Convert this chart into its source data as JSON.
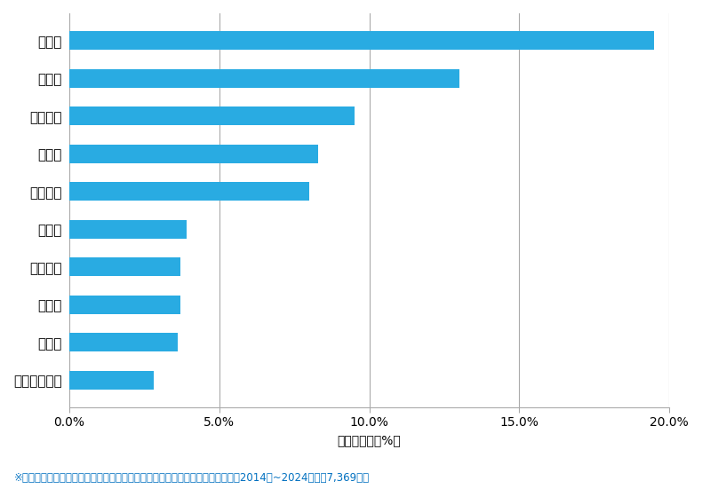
{
  "categories": [
    "那覇市",
    "沖縄市",
    "うるま市",
    "浦添市",
    "宜野湾市",
    "南城市",
    "豊見城市",
    "名護市",
    "糸満市",
    "中頭郡西原町"
  ],
  "values": [
    19.5,
    13.0,
    9.5,
    8.3,
    8.0,
    3.9,
    3.7,
    3.7,
    3.6,
    2.8
  ],
  "bar_color": "#29ABE2",
  "xlabel": "件数の割合（%）",
  "xlim": [
    0,
    20.0
  ],
  "xticks": [
    0,
    5.0,
    10.0,
    15.0,
    20.0
  ],
  "xticklabels": [
    "0.0%",
    "5.0%",
    "10.0%",
    "15.0%",
    "20.0%"
  ],
  "footnote": "※弊社受付の案件を対象に、受付時に市区町村の回答があったものを集計（期間2014年~2024年、計7,369件）",
  "footnote_color": "#0070C0",
  "bg_color": "#FFFFFF",
  "bar_height": 0.5,
  "grid_color": "#AAAAAA",
  "label_fontsize": 11,
  "tick_fontsize": 10,
  "xlabel_fontsize": 10
}
